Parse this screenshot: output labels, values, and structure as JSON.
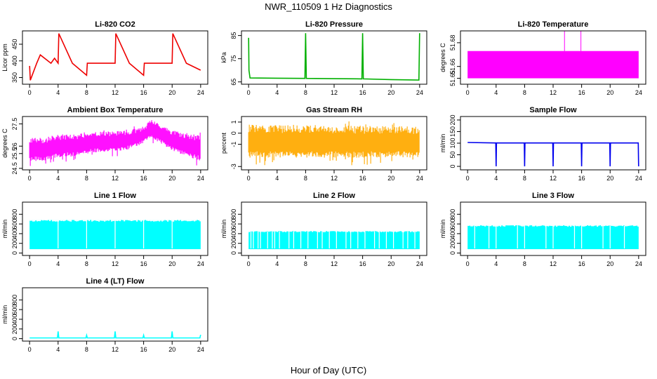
{
  "title": "NWR_110509  1 Hz Diagnostics",
  "xlabel": "Hour of Day (UTC)",
  "colors": {
    "red": "#ee0000",
    "green": "#00b000",
    "magenta": "#ff00ff",
    "orange": "#ffaa00",
    "blue": "#0000ee",
    "cyan": "#00ffff"
  },
  "chart_data": [
    {
      "type": "line",
      "title": "Li-820 CO2",
      "ylabel": "Licor ppm",
      "x_ticks": [
        0,
        4,
        8,
        12,
        16,
        20,
        24
      ],
      "xlim": [
        -1,
        25
      ],
      "ylim": [
        330,
        490
      ],
      "y_ticks": [
        350,
        400,
        450
      ],
      "color": "red",
      "series": [
        {
          "x": [
            0,
            0.1,
            1.0,
            1.5,
            3.0,
            3.5,
            4.0,
            4.1,
            6.0,
            8.0,
            8.1,
            10.0,
            12.0,
            12.1,
            14.0,
            16.0,
            16.1,
            18.0,
            20.0,
            20.1,
            22.0,
            24.0
          ],
          "y": [
            385,
            342,
            393,
            418,
            393,
            408,
            393,
            482,
            393,
            357,
            393,
            393,
            393,
            482,
            393,
            357,
            393,
            393,
            393,
            482,
            393,
            372
          ]
        }
      ]
    },
    {
      "type": "line",
      "title": "Li-820 Pressure",
      "ylabel": "kPa",
      "x_ticks": [
        0,
        4,
        8,
        12,
        16,
        20,
        24
      ],
      "xlim": [
        -1,
        25
      ],
      "ylim": [
        64,
        87
      ],
      "y_ticks": [
        65,
        75,
        85
      ],
      "color": "green",
      "series": [
        {
          "x": [
            0,
            0.05,
            0.2,
            4.0,
            7.9,
            8.0,
            8.1,
            12.0,
            15.9,
            16.0,
            16.1,
            20.0,
            23.9,
            24.0
          ],
          "y": [
            84,
            70,
            66.7,
            66.6,
            66.5,
            86,
            66.5,
            66.4,
            66.3,
            86,
            66.3,
            66.0,
            65.8,
            86
          ]
        }
      ]
    },
    {
      "type": "area",
      "title": "Li-820 Temperature",
      "ylabel": "degrees C",
      "x_ticks": [
        0,
        4,
        8,
        12,
        16,
        20,
        24
      ],
      "xlim": [
        -1,
        25
      ],
      "ylim": [
        51.645,
        51.69
      ],
      "y_ticks": [
        51.65,
        51.66,
        51.68
      ],
      "color": "magenta",
      "band": [
        51.65,
        51.673
      ],
      "spikes": [
        {
          "x": 13.6,
          "y": 51.69
        },
        {
          "x": 15.9,
          "y": 51.69
        }
      ]
    },
    {
      "type": "line",
      "title": "Ambient Box Temperature",
      "ylabel": "degrees C",
      "x_ticks": [
        0,
        4,
        8,
        12,
        16,
        20,
        24
      ],
      "xlim": [
        -1,
        25
      ],
      "ylim": [
        24.4,
        28.0
      ],
      "y_ticks": [
        24.5,
        25.5,
        26.0,
        27.5
      ],
      "color": "magenta",
      "series": [
        {
          "name": "upper",
          "x": [
            0,
            2,
            4,
            6,
            8,
            10,
            12,
            14,
            16,
            17,
            18,
            20,
            22,
            24
          ],
          "y": [
            26.6,
            26.6,
            26.8,
            26.8,
            26.9,
            27.0,
            27.0,
            27.1,
            27.3,
            27.8,
            27.6,
            27.1,
            26.9,
            26.7
          ]
        },
        {
          "name": "lower",
          "x": [
            0,
            2,
            4,
            6,
            8,
            10,
            12,
            14,
            16,
            17,
            18,
            20,
            22,
            24
          ],
          "y": [
            25.0,
            25.0,
            25.2,
            25.3,
            25.5,
            25.6,
            25.6,
            25.8,
            26.2,
            26.6,
            26.3,
            25.7,
            25.3,
            25.0
          ]
        }
      ]
    },
    {
      "type": "line",
      "title": "Gas Stream RH",
      "ylabel": "percent",
      "x_ticks": [
        0,
        4,
        8,
        12,
        16,
        20,
        24
      ],
      "xlim": [
        -1,
        25
      ],
      "ylim": [
        -3.3,
        1.5
      ],
      "y_ticks": [
        -3,
        -1,
        0,
        1
      ],
      "color": "orange",
      "series": [
        {
          "name": "upper",
          "x": [
            0,
            24
          ],
          "y": [
            0.8,
            0.6
          ]
        },
        {
          "name": "lower",
          "x": [
            0,
            24
          ],
          "y": [
            -2.2,
            -2.2
          ]
        }
      ]
    },
    {
      "type": "line",
      "title": "Sample Flow",
      "ylabel": "ml/min",
      "x_ticks": [
        0,
        4,
        8,
        12,
        16,
        20,
        24
      ],
      "xlim": [
        -1,
        25
      ],
      "ylim": [
        -15,
        215
      ],
      "y_ticks": [
        0,
        50,
        100,
        150,
        200
      ],
      "color": "blue",
      "series": [
        {
          "x": [
            0,
            3.95,
            4.0,
            4.05,
            7.95,
            8.0,
            8.05,
            11.95,
            12.0,
            12.05,
            15.95,
            16.0,
            16.05,
            19.95,
            20.0,
            20.05,
            23.95,
            24.0
          ],
          "y": [
            103,
            101,
            0,
            101,
            101,
            0,
            101,
            101,
            0,
            101,
            101,
            0,
            101,
            101,
            0,
            101,
            101,
            0
          ]
        }
      ]
    },
    {
      "type": "area",
      "title": "Line 1 Flow",
      "ylabel": "ml/min",
      "x_ticks": [
        0,
        4,
        8,
        12,
        16,
        20,
        24
      ],
      "xlim": [
        -1,
        25
      ],
      "ylim": [
        -50,
        1050
      ],
      "y_ticks": [
        0,
        200,
        400,
        600,
        800
      ],
      "color": "cyan",
      "band": [
        80,
        690
      ],
      "gaps": [
        4,
        8,
        12,
        16,
        20
      ]
    },
    {
      "type": "area",
      "title": "Line 2 Flow",
      "ylabel": "ml/min",
      "x_ticks": [
        0,
        4,
        8,
        12,
        16,
        20,
        24
      ],
      "xlim": [
        -1,
        25
      ],
      "ylim": [
        -50,
        1050
      ],
      "y_ticks": [
        0,
        200,
        400,
        600,
        800
      ],
      "color": "cyan",
      "band": [
        80,
        460
      ],
      "gaps": [
        0.33,
        0.67,
        1.33,
        1.67,
        2.67,
        3.33,
        3.67,
        4.33,
        5.67,
        6.33,
        7.33,
        8.33,
        9.67,
        10.33,
        11.33,
        12.33,
        13.67,
        14.33,
        15.33,
        16.33,
        17.67,
        18.33,
        19.33,
        20.33,
        21.67,
        22.33,
        23.33
      ]
    },
    {
      "type": "area",
      "title": "Line 3 Flow",
      "ylabel": "ml/min",
      "x_ticks": [
        0,
        4,
        8,
        12,
        16,
        20,
        24
      ],
      "xlim": [
        -1,
        25
      ],
      "ylim": [
        -50,
        1050
      ],
      "y_ticks": [
        0,
        200,
        400,
        600,
        800
      ],
      "color": "cyan",
      "band": [
        80,
        580
      ],
      "gaps": [
        1.0,
        3.0,
        4.0,
        7.0,
        8.0,
        11.0,
        12.0,
        15.0,
        16.0,
        19.0,
        20.0,
        22.0
      ]
    },
    {
      "type": "line",
      "title": "Line 4 (LT) Flow",
      "ylabel": "ml/min",
      "x_ticks": [
        0,
        4,
        8,
        12,
        16,
        20,
        24
      ],
      "xlim": [
        -1,
        25
      ],
      "ylim": [
        -50,
        1050
      ],
      "y_ticks": [
        0,
        200,
        400,
        600,
        800
      ],
      "color": "cyan",
      "series": [
        {
          "x": [
            0,
            3.9,
            4.0,
            4.1,
            7.9,
            8.0,
            8.1,
            11.9,
            12.0,
            12.1,
            15.9,
            16.0,
            16.1,
            19.9,
            20.0,
            20.1,
            23.9,
            24.0
          ],
          "y": [
            15,
            15,
            150,
            15,
            15,
            70,
            15,
            15,
            150,
            15,
            15,
            70,
            15,
            15,
            150,
            15,
            15,
            80
          ]
        }
      ]
    }
  ]
}
